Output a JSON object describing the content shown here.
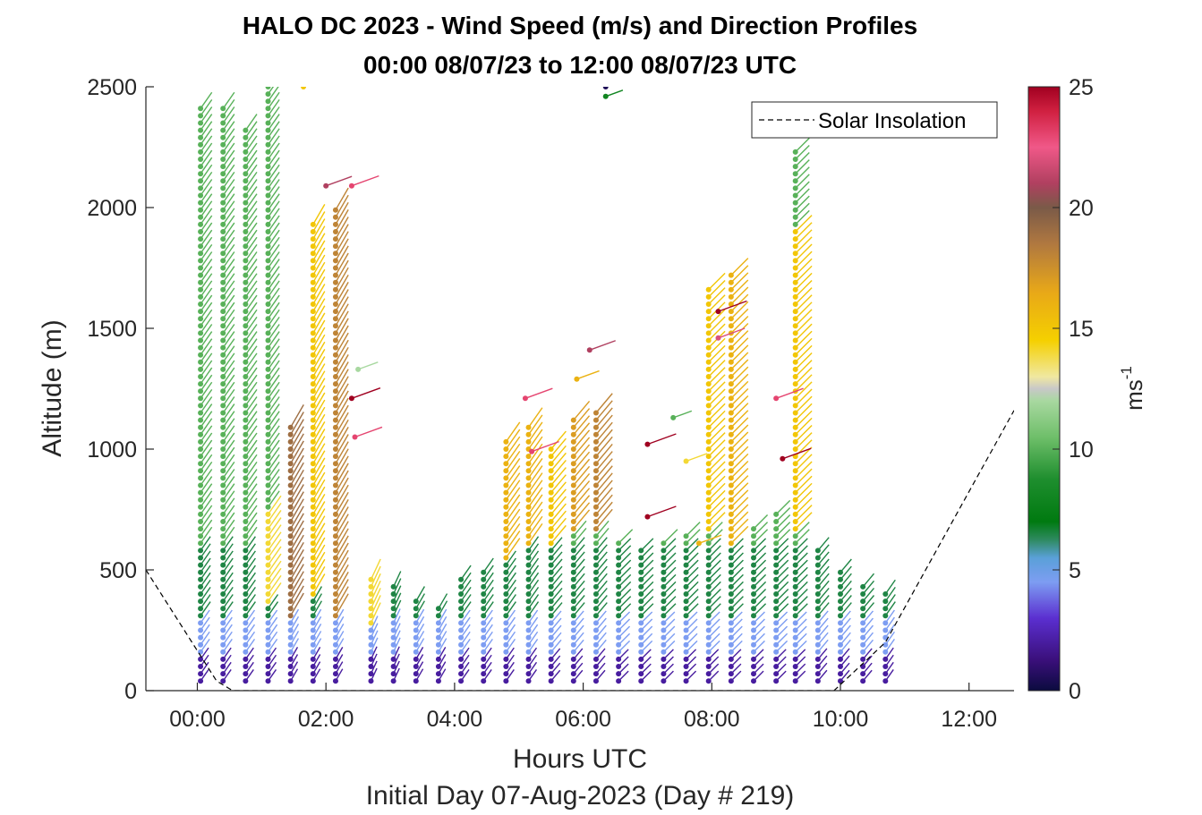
{
  "chart_data": {
    "type": "scatter",
    "title": "HALO DC 2023 - Wind Speed (m/s) and Direction Profiles",
    "subtitle": "00:00 08/07/23 to 12:00 08/07/23  UTC",
    "xlabel": "Hours UTC",
    "x_sublabel": "Initial Day 07-Aug-2023 (Day # 219)",
    "ylabel": "Altitude (m)",
    "xlim": [
      -0.8,
      12.7
    ],
    "ylim": [
      0,
      2500
    ],
    "x_ticks": [
      0,
      2,
      4,
      6,
      8,
      10,
      12
    ],
    "x_tick_labels": [
      "00:00",
      "02:00",
      "04:00",
      "06:00",
      "08:00",
      "10:00",
      "12:00"
    ],
    "y_ticks": [
      0,
      500,
      1000,
      1500,
      2000,
      2500
    ],
    "y_tick_labels": [
      "0",
      "500",
      "1000",
      "1500",
      "2000",
      "2500"
    ],
    "legend": {
      "label": "Solar Insolation",
      "placement": "top-right"
    },
    "colorbar": {
      "label": "ms",
      "label_exponent": "-1",
      "range": [
        0,
        25
      ],
      "ticks": [
        0,
        5,
        10,
        15,
        20,
        25
      ],
      "tick_labels": [
        "0",
        "5",
        "10",
        "15",
        "20",
        "25"
      ],
      "stops": [
        [
          0.0,
          "#0b0b3f"
        ],
        [
          0.05,
          "#3a0f7a"
        ],
        [
          0.12,
          "#5b2fd0"
        ],
        [
          0.18,
          "#7d9df2"
        ],
        [
          0.22,
          "#5aa0d8"
        ],
        [
          0.25,
          "#2e8a60"
        ],
        [
          0.28,
          "#007a10"
        ],
        [
          0.35,
          "#1e8e2e"
        ],
        [
          0.42,
          "#6fbf6a"
        ],
        [
          0.48,
          "#a8d8a0"
        ],
        [
          0.5,
          "#c8c8c8"
        ],
        [
          0.52,
          "#f0e8a0"
        ],
        [
          0.58,
          "#f5d000"
        ],
        [
          0.66,
          "#e8a818"
        ],
        [
          0.74,
          "#b07840"
        ],
        [
          0.8,
          "#7a5a48"
        ],
        [
          0.84,
          "#b04060"
        ],
        [
          0.9,
          "#f05888"
        ],
        [
          0.96,
          "#d02040"
        ],
        [
          1.0,
          "#a00020"
        ]
      ]
    },
    "solar_insolation": {
      "x": [
        -0.8,
        0.3,
        0.55,
        9.9,
        10.7,
        12.7
      ],
      "y": [
        500,
        40,
        0,
        0,
        200,
        1160
      ]
    },
    "profiles": [
      {
        "t": 0.05,
        "top": 2420,
        "dir": 215
      },
      {
        "t": 0.4,
        "top": 2420,
        "dir": 215
      },
      {
        "t": 0.75,
        "top": 2330,
        "dir": 215
      },
      {
        "t": 1.1,
        "top": 2500,
        "dir": 215
      },
      {
        "t": 1.45,
        "top": 1090,
        "dir": 210
      },
      {
        "t": 1.8,
        "top": 1950,
        "dir": 210
      },
      {
        "t": 2.15,
        "top": 2000,
        "dir": 210
      },
      {
        "t": 2.7,
        "top": 480,
        "dir": 205
      },
      {
        "t": 3.05,
        "top": 450,
        "dir": 205
      },
      {
        "t": 3.4,
        "top": 380,
        "dir": 210
      },
      {
        "t": 3.75,
        "top": 360,
        "dir": 210
      },
      {
        "t": 4.1,
        "top": 480,
        "dir": 215
      },
      {
        "t": 4.45,
        "top": 490,
        "dir": 215
      },
      {
        "t": 4.8,
        "top": 1050,
        "dir": 215
      },
      {
        "t": 5.15,
        "top": 1090,
        "dir": 215
      },
      {
        "t": 5.5,
        "top": 1000,
        "dir": 220
      },
      {
        "t": 5.85,
        "top": 1130,
        "dir": 220
      },
      {
        "t": 6.2,
        "top": 1170,
        "dir": 220
      },
      {
        "t": 6.55,
        "top": 620,
        "dir": 225
      },
      {
        "t": 6.9,
        "top": 600,
        "dir": 225
      },
      {
        "t": 7.25,
        "top": 620,
        "dir": 225
      },
      {
        "t": 7.6,
        "top": 640,
        "dir": 225
      },
      {
        "t": 7.95,
        "top": 1660,
        "dir": 225
      },
      {
        "t": 8.3,
        "top": 1740,
        "dir": 225
      },
      {
        "t": 8.65,
        "top": 690,
        "dir": 225
      },
      {
        "t": 9.0,
        "top": 740,
        "dir": 225
      },
      {
        "t": 9.3,
        "top": 2250,
        "dir": 225
      },
      {
        "t": 9.65,
        "top": 580,
        "dir": 220
      },
      {
        "t": 10.0,
        "top": 500,
        "dir": 220
      },
      {
        "t": 10.35,
        "top": 450,
        "dir": 220
      },
      {
        "t": 10.7,
        "top": 420,
        "dir": 215
      }
    ],
    "speed_profiles_by_segment": [
      {
        "from": 0,
        "to": 150,
        "speed": 3
      },
      {
        "from": 150,
        "to": 300,
        "speed": 5.5
      },
      {
        "from": 300,
        "to": 600,
        "speed": 7.5
      },
      {
        "from": 600,
        "to": 2500,
        "speed": 11
      }
    ],
    "jet_columns": [
      {
        "t": 1.1,
        "from": 350,
        "to": 750,
        "speed": 14
      },
      {
        "t": 1.45,
        "from": 300,
        "to": 1090,
        "speed": 19
      },
      {
        "t": 1.8,
        "from": 400,
        "to": 1950,
        "speed": 15
      },
      {
        "t": 2.15,
        "from": 300,
        "to": 2000,
        "speed": 18
      },
      {
        "t": 2.7,
        "from": 280,
        "to": 480,
        "speed": 14
      },
      {
        "t": 4.8,
        "from": 550,
        "to": 1050,
        "speed": 16
      },
      {
        "t": 5.15,
        "from": 600,
        "to": 1090,
        "speed": 16
      },
      {
        "t": 5.5,
        "from": 600,
        "to": 1000,
        "speed": 15
      },
      {
        "t": 5.85,
        "from": 650,
        "to": 1130,
        "speed": 17
      },
      {
        "t": 6.2,
        "from": 650,
        "to": 1170,
        "speed": 18
      },
      {
        "t": 7.95,
        "from": 650,
        "to": 1660,
        "speed": 15
      },
      {
        "t": 8.3,
        "from": 600,
        "to": 1740,
        "speed": 16
      },
      {
        "t": 9.3,
        "from": 650,
        "to": 1900,
        "speed": 15
      }
    ],
    "scattered_points": [
      {
        "t": 1.65,
        "alt": 2500,
        "speed": 15
      },
      {
        "t": 2.0,
        "alt": 2090,
        "speed": 21
      },
      {
        "t": 2.4,
        "alt": 2090,
        "speed": 23
      },
      {
        "t": 2.4,
        "alt": 1210,
        "speed": 25
      },
      {
        "t": 2.45,
        "alt": 1050,
        "speed": 23
      },
      {
        "t": 6.35,
        "alt": 2500,
        "speed": 0.5
      },
      {
        "t": 6.35,
        "alt": 2460,
        "speed": 8
      },
      {
        "t": 6.1,
        "alt": 1410,
        "speed": 21
      },
      {
        "t": 5.9,
        "alt": 1290,
        "speed": 16
      },
      {
        "t": 5.1,
        "alt": 1210,
        "speed": 23
      },
      {
        "t": 5.2,
        "alt": 990,
        "speed": 23
      },
      {
        "t": 7.0,
        "alt": 1020,
        "speed": 25
      },
      {
        "t": 7.0,
        "alt": 720,
        "speed": 25
      },
      {
        "t": 7.6,
        "alt": 950,
        "speed": 14
      },
      {
        "t": 8.1,
        "alt": 1570,
        "speed": 25
      },
      {
        "t": 8.1,
        "alt": 1460,
        "speed": 22
      },
      {
        "t": 9.0,
        "alt": 1210,
        "speed": 23
      },
      {
        "t": 9.1,
        "alt": 960,
        "speed": 25
      },
      {
        "t": 7.8,
        "alt": 610,
        "speed": 16
      },
      {
        "t": 2.5,
        "alt": 1330,
        "speed": 12
      },
      {
        "t": 7.4,
        "alt": 1130,
        "speed": 10
      }
    ]
  }
}
